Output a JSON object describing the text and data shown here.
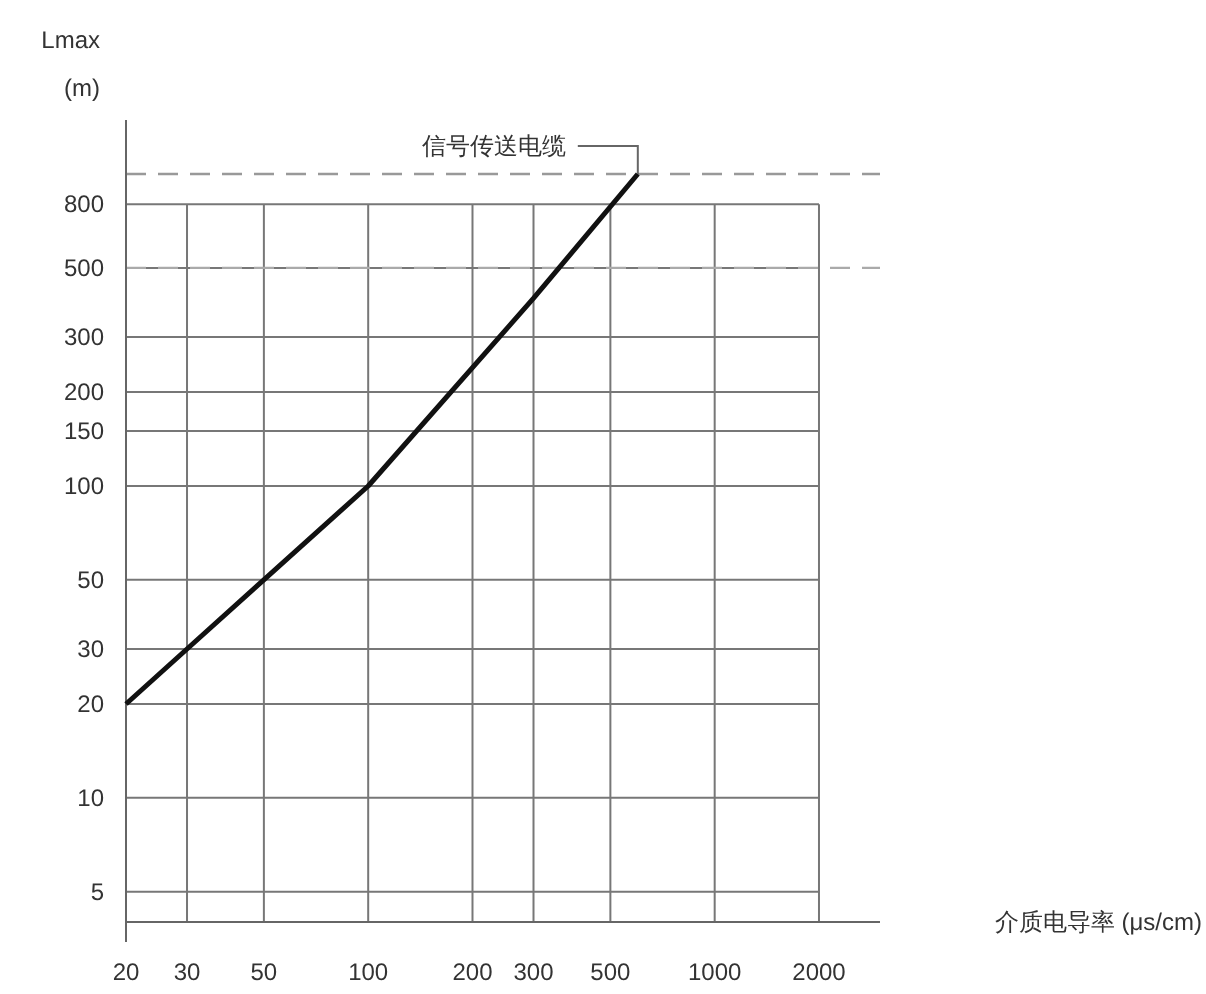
{
  "chart_data": {
    "type": "line",
    "xlabel": "介质电导率 (μs/cm)",
    "ylabel": "Lmax (m)",
    "log": "xy",
    "grid": true,
    "legend": false,
    "marker": "none",
    "line_style": "solid",
    "xlim": [
      20,
      3000
    ],
    "ylim": [
      4,
      1000
    ],
    "xticks": [
      20,
      30,
      50,
      100,
      200,
      300,
      500,
      1000,
      2000
    ],
    "yticks": [
      5,
      10,
      20,
      30,
      50,
      100,
      150,
      200,
      300,
      500,
      800
    ],
    "x": [
      20,
      30,
      50,
      100,
      300,
      600
    ],
    "series": [
      {
        "name": "信号传送电缆",
        "color": "#111111",
        "values": [
          20,
          30,
          50,
          100,
          400,
          1000
        ]
      }
    ],
    "ref_lines": [
      {
        "axis": "y",
        "value": 1000,
        "color": "#999999",
        "line_style": "dashed"
      },
      {
        "axis": "y",
        "value": 500,
        "color": "#aaaaaa",
        "line_style": "dashed"
      }
    ]
  }
}
